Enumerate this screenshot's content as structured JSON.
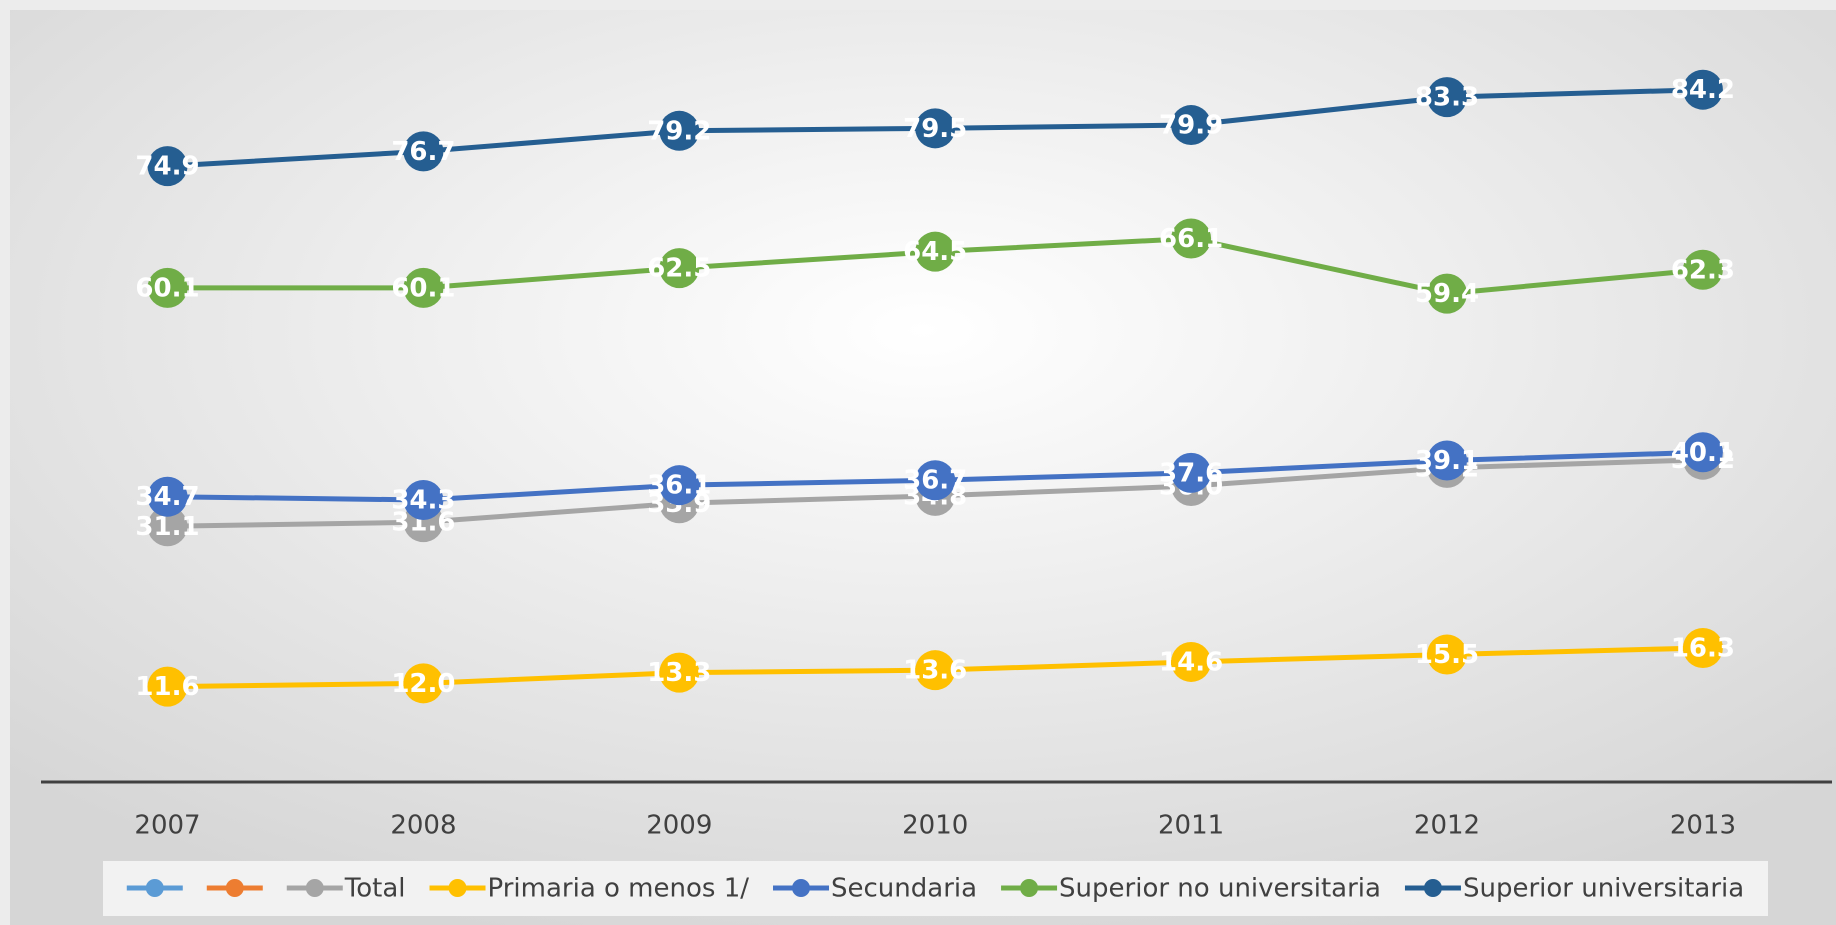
{
  "chart_data": {
    "type": "line",
    "categories": [
      "2007",
      "2008",
      "2009",
      "2010",
      "2011",
      "2012",
      "2013"
    ],
    "ylim": [
      0,
      90
    ],
    "series": [
      {
        "name": null,
        "color": "#5b9bd5",
        "values": [
          null,
          null,
          null,
          null,
          null,
          null,
          null
        ]
      },
      {
        "name": null,
        "color": "#ed7d31",
        "values": [
          null,
          null,
          null,
          null,
          null,
          null,
          null
        ]
      },
      {
        "name": "Total",
        "color": "#a5a5a5",
        "values": [
          31.1,
          31.6,
          33.9,
          34.8,
          36.0,
          38.2,
          39.2
        ],
        "value_labels": [
          "31.1",
          "31.6",
          "33.9",
          "34.8",
          "36.0",
          "38.2",
          "39.2"
        ]
      },
      {
        "name": "Primaria o menos 1/",
        "color": "#ffc000",
        "values": [
          11.6,
          12.0,
          13.3,
          13.6,
          14.6,
          15.5,
          16.3
        ],
        "value_labels": [
          "11.6",
          "12.0",
          "13.3",
          "13.6",
          "14.6",
          "15.5",
          "16.3"
        ]
      },
      {
        "name": "Secundaria",
        "color": "#4472c4",
        "values": [
          34.7,
          34.3,
          36.1,
          36.7,
          37.6,
          39.1,
          40.1
        ],
        "value_labels": [
          "34.7",
          "34.3",
          "36.1",
          "36.7",
          "37.6",
          "39.1",
          "40.1"
        ]
      },
      {
        "name": "Superior no universitaria",
        "color": "#70ad47",
        "values": [
          60.1,
          60.1,
          62.5,
          64.5,
          66.1,
          59.4,
          62.3
        ],
        "value_labels": [
          "60.1",
          "60.1",
          "62.5",
          "64.5",
          "66.1",
          "59.4",
          "62.3"
        ]
      },
      {
        "name": "Superior universitaria",
        "color": "#255e91",
        "values": [
          74.9,
          76.7,
          79.2,
          79.5,
          79.9,
          83.3,
          84.2
        ],
        "value_labels": [
          "74.9",
          "76.7",
          "79.2",
          "79.5",
          "79.9",
          "83.3",
          "84.2"
        ]
      }
    ]
  }
}
